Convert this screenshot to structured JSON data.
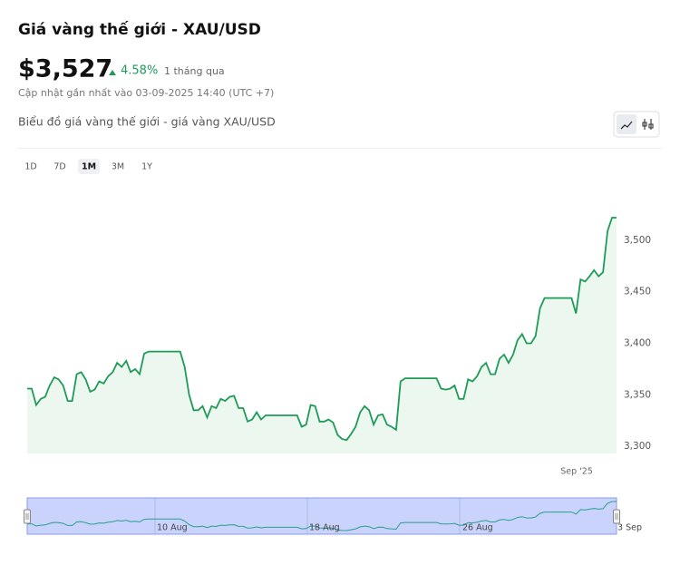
{
  "header": {
    "title": "Giá vàng thế giới - XAU/USD",
    "price": "$3,527",
    "change": "4.58%",
    "period": "1 tháng qua",
    "updated": "Cập nhật gần nhất vào 03-09-2025 14:40 (UTC +7)",
    "subtitle": "Biểu đồ giá vàng thế giới - giá vàng XAU/USD"
  },
  "tabs": {
    "items": [
      "1D",
      "7D",
      "1M",
      "3M",
      "1Y"
    ],
    "active": "1M"
  },
  "chart_data": {
    "type": "area",
    "color": "#1e9b57",
    "values": [
      3356,
      3356,
      3340,
      3346,
      3348,
      3359,
      3367,
      3365,
      3359,
      3344,
      3344,
      3370,
      3372,
      3365,
      3353,
      3355,
      3363,
      3361,
      3368,
      3372,
      3381,
      3377,
      3383,
      3372,
      3375,
      3370,
      3390,
      3392,
      3392,
      3392,
      3392,
      3392,
      3392,
      3392,
      3392,
      3377,
      3350,
      3335,
      3335,
      3339,
      3328,
      3339,
      3337,
      3346,
      3344,
      3348,
      3349,
      3337,
      3337,
      3324,
      3326,
      3333,
      3326,
      3330,
      3330,
      3330,
      3330,
      3330,
      3330,
      3330,
      3330,
      3319,
      3321,
      3340,
      3339,
      3324,
      3324,
      3326,
      3323,
      3311,
      3307,
      3306,
      3312,
      3319,
      3333,
      3339,
      3335,
      3321,
      3330,
      3331,
      3321,
      3319,
      3316,
      3363,
      3366,
      3366,
      3366,
      3366,
      3366,
      3366,
      3366,
      3366,
      3356,
      3355,
      3356,
      3359,
      3346,
      3346,
      3365,
      3363,
      3368,
      3377,
      3381,
      3370,
      3370,
      3385,
      3389,
      3381,
      3389,
      3403,
      3409,
      3400,
      3400,
      3407,
      3434,
      3444,
      3444,
      3444,
      3444,
      3444,
      3444,
      3444,
      3429,
      3462,
      3460,
      3465,
      3471,
      3465,
      3469,
      3509,
      3522,
      3522
    ],
    "ylim": [
      3293,
      3522
    ],
    "yticks": [
      {
        "value": 3300,
        "label": "3,300"
      },
      {
        "value": 3350,
        "label": "3,350"
      },
      {
        "value": 3400,
        "label": "3,400"
      },
      {
        "value": 3450,
        "label": "3,450"
      },
      {
        "value": 3500,
        "label": "3,500"
      }
    ],
    "x_label": "Sep '25",
    "navigator_labels": [
      "10 Aug",
      "18 Aug",
      "26 Aug",
      "3 Sep"
    ]
  }
}
